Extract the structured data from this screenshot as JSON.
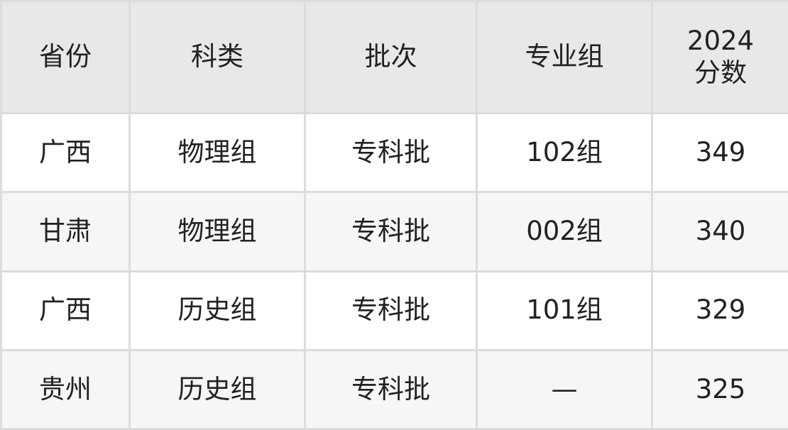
{
  "table": {
    "headers": [
      "省份",
      "科类",
      "批次",
      "专业组",
      "2024\n分数"
    ],
    "header_lines": [
      "2024",
      "分数"
    ],
    "rows": [
      [
        "广西",
        "物理组",
        "专科批",
        "102组",
        "349"
      ],
      [
        "甘肃",
        "物理组",
        "专科批",
        "002组",
        "340"
      ],
      [
        "广西",
        "历史组",
        "专科批",
        "101组",
        "329"
      ],
      [
        "贵州",
        "历史组",
        "专科批",
        "—",
        "325"
      ]
    ]
  },
  "colors": {
    "header_bg": "#e8e8e8",
    "stripe_bg": "#f6f6f6",
    "border": "#dcdcdc"
  }
}
